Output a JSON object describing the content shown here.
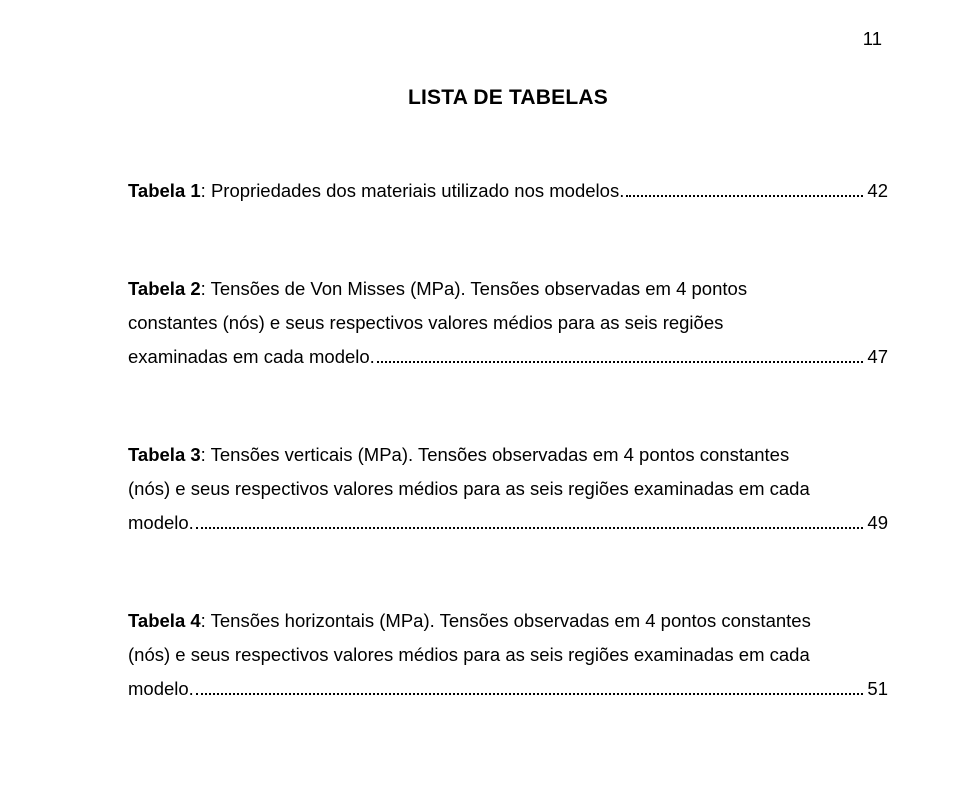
{
  "page_number": "11",
  "heading": "LISTA DE TABELAS",
  "entry1": {
    "label_bold": "Tabela 1",
    "desc_line1": ": Propriedades dos materiais utilizado nos modelos.",
    "page": "42"
  },
  "entry2": {
    "label_bold": "Tabela 2",
    "desc_plain_line1": ": Tensões de Von Misses (MPa). Tensões observadas em 4 pontos",
    "desc_line2": "constantes (nós) e seus respectivos valores médios para as seis regiões",
    "desc_line3_pre": "examinadas em cada modelo. ",
    "page": "47"
  },
  "entry3": {
    "label_bold": "Tabela 3",
    "desc_plain_line1": ": Tensões verticais (MPa). Tensões observadas em 4 pontos constantes",
    "desc_line2": "(nós) e seus respectivos valores médios para as seis regiões examinadas em cada",
    "desc_line3_pre": "modelo. ",
    "page": "49"
  },
  "entry4": {
    "label_bold": "Tabela 4",
    "desc_plain_line1": ": Tensões horizontais (MPa). Tensões observadas em 4 pontos constantes",
    "desc_line2": "(nós) e seus respectivos valores médios para as seis regiões examinadas em cada",
    "desc_line3_pre": "modelo.",
    "page": "51"
  }
}
